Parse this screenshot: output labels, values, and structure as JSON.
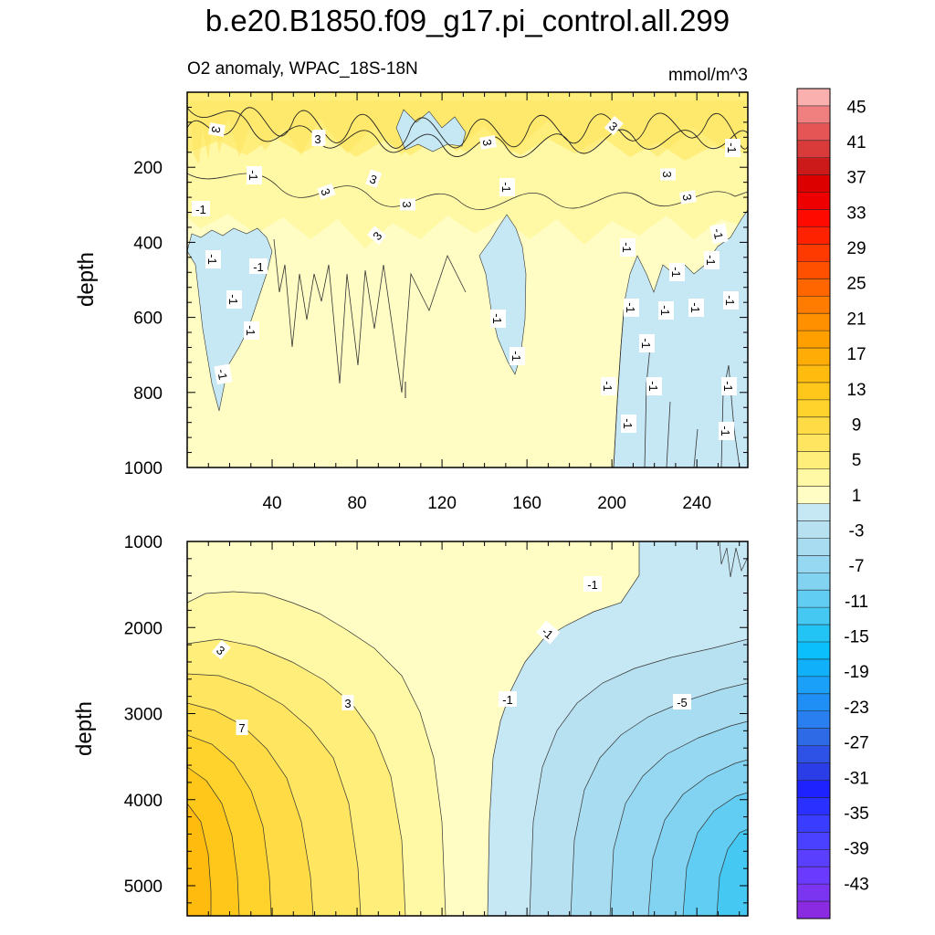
{
  "chart_data": [
    {
      "type": "contour",
      "title": "b.e20.B1850.f09_g17.pi_control.all.299",
      "left_label": "O2 anomaly, WPAC_18S-18N",
      "right_label": "mmol/m^3",
      "ylabel": "depth",
      "xlim": [
        0,
        264
      ],
      "ylim": [
        1000,
        0
      ],
      "x_ticks": [
        40,
        80,
        120,
        160,
        200,
        240
      ],
      "y_ticks": [
        200,
        400,
        600,
        800,
        1000
      ],
      "contour_labels": [
        "3",
        "3",
        "3",
        "3",
        "3",
        "3",
        "3",
        "3",
        "3",
        "3",
        "3",
        "-1",
        "-1",
        "-1",
        "-1",
        "-1",
        "-1",
        "-1",
        "-1",
        "-1",
        "-1",
        "-1",
        "-1",
        "-1",
        "-1",
        "-1",
        "-1",
        "-1",
        "-1",
        "-1",
        "-1",
        "-1",
        "-1",
        "-1",
        "-1",
        "-1"
      ]
    },
    {
      "type": "contour",
      "ylabel": "depth",
      "xlim": [
        0,
        264
      ],
      "ylim": [
        5350,
        1000
      ],
      "y_ticks": [
        1000,
        2000,
        3000,
        4000,
        5000
      ],
      "contour_labels": [
        "3",
        "3",
        "7",
        "-1",
        "-1",
        "-1",
        "-5"
      ]
    }
  ],
  "colorbar": {
    "levels": [
      -47,
      -45,
      -43,
      -41,
      -39,
      -37,
      -35,
      -33,
      -31,
      -29,
      -27,
      -25,
      -23,
      -21,
      -19,
      -17,
      -15,
      -13,
      -11,
      -9,
      -7,
      -5,
      -3,
      -1,
      1,
      3,
      5,
      7,
      9,
      11,
      13,
      15,
      17,
      19,
      21,
      23,
      25,
      27,
      29,
      31,
      33,
      35,
      37,
      39,
      41,
      43,
      45,
      47
    ],
    "tick_labels": [
      "-43",
      "-39",
      "-35",
      "-31",
      "-27",
      "-23",
      "-19",
      "-15",
      "-11",
      "-7",
      "-3",
      "1",
      "5",
      "9",
      "13",
      "17",
      "21",
      "25",
      "29",
      "33",
      "37",
      "41",
      "45"
    ],
    "colors": [
      "#8a2be2",
      "#7b35f0",
      "#6a3bff",
      "#5a3fff",
      "#4a40ff",
      "#3a3dff",
      "#2a30ff",
      "#1e22ff",
      "#2a3de6",
      "#2f52e6",
      "#2e6ae6",
      "#2a7ff0",
      "#1f8ff5",
      "#1aa0f8",
      "#10b0fa",
      "#0abffc",
      "#22c3f5",
      "#45c8f2",
      "#62cdf2",
      "#82d3f2",
      "#96d8f2",
      "#a8dcf0",
      "#b7e1f0",
      "#c6e8f4",
      "#fffdc4",
      "#fff8a4",
      "#ffee7a",
      "#ffe560",
      "#ffdc45",
      "#ffd22c",
      "#ffc71a",
      "#ffbb0e",
      "#ffad06",
      "#ffa000",
      "#ff9000",
      "#ff7c00",
      "#ff6600",
      "#ff5000",
      "#ff3a00",
      "#ff2200",
      "#ff0a00",
      "#ee0000",
      "#dd0000",
      "#cc1a1a",
      "#d93a3a",
      "#e65555",
      "#f08080",
      "#fbb0b0"
    ]
  }
}
